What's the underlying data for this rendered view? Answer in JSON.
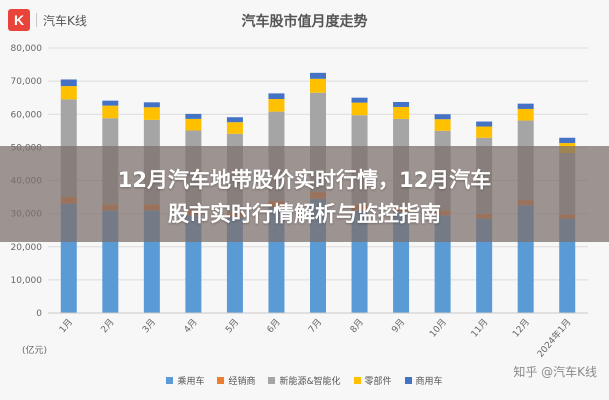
{
  "logo": {
    "mark": "K",
    "text": "汽车K线"
  },
  "headline": {
    "line1": "12月汽车地带股价实时行情，12月汽车",
    "line2": "股市实时行情解析与监控指南"
  },
  "watermark": "知乎 @汽车K线",
  "colors": {
    "bg": "#f7f7f7",
    "band": "#7d706c"
  },
  "chart_data": {
    "type": "bar",
    "stacked": true,
    "title": "汽车股市值月度走势",
    "ylabel": "(亿元)",
    "ylim": [
      0,
      80000
    ],
    "yticks": [
      "0",
      "10,000",
      "20,000",
      "30,000",
      "40,000",
      "50,000",
      "60,000",
      "70,000",
      "80,000"
    ],
    "grid": true,
    "legend_position": "bottom",
    "categories": [
      "1月",
      "2月",
      "3月",
      "4月",
      "5月",
      "6月",
      "7月",
      "8月",
      "9月",
      "10月",
      "11月",
      "12月",
      "2024年1月"
    ],
    "series": [
      {
        "name": "乘用车",
        "color": "#5b9bd5",
        "values": [
          33000,
          31000,
          31000,
          29500,
          29000,
          32000,
          34500,
          31000,
          30500,
          29500,
          28500,
          32500,
          28500
        ]
      },
      {
        "name": "经销商",
        "color": "#ed7d31",
        "values": [
          2000,
          1800,
          1800,
          1600,
          1600,
          1800,
          2000,
          1700,
          1600,
          1500,
          1400,
          1600,
          1300
        ]
      },
      {
        "name": "新能源&智能化",
        "color": "#a5a5a5",
        "values": [
          29500,
          26000,
          25500,
          24000,
          23500,
          27000,
          30000,
          27000,
          26500,
          24000,
          23000,
          24000,
          18500
        ]
      },
      {
        "name": "零部件",
        "color": "#ffc000",
        "values": [
          4000,
          3800,
          3800,
          3500,
          3500,
          3800,
          4200,
          3800,
          3600,
          3500,
          3400,
          3500,
          3000
        ]
      },
      {
        "name": "商用车",
        "color": "#4472c4",
        "values": [
          2000,
          1500,
          1500,
          1500,
          1500,
          1700,
          1800,
          1500,
          1500,
          1500,
          1500,
          1600,
          1600
        ]
      }
    ]
  }
}
